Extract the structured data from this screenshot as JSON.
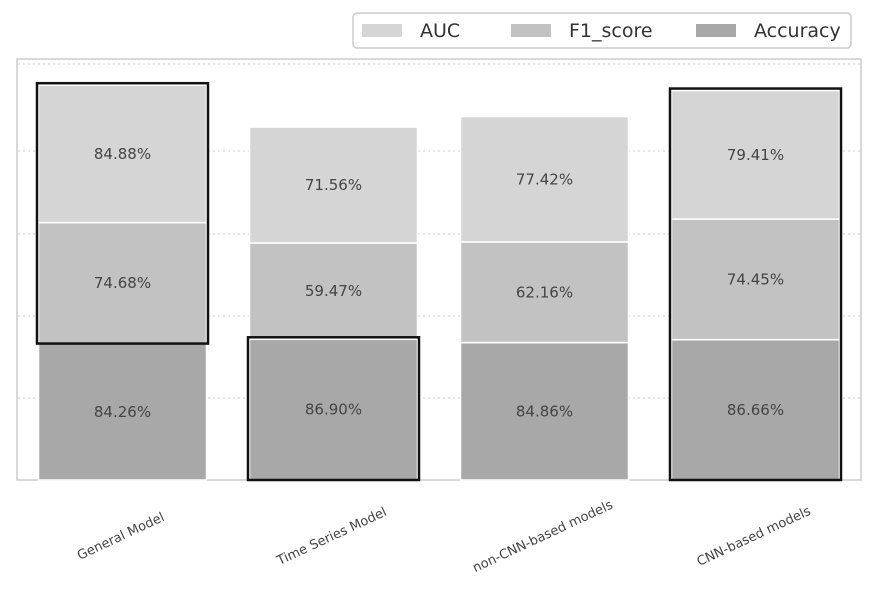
{
  "chart_data": {
    "type": "bar",
    "stacked": true,
    "title": "",
    "xlabel": "",
    "ylabel": "",
    "grid": true,
    "legend_position": "top-right",
    "categories": [
      "General Model",
      "Time Series Model",
      "non-CNN-based models",
      "CNN-based models"
    ],
    "series": [
      {
        "name": "Accuracy",
        "values": [
          84.26,
          86.9,
          84.86,
          86.66
        ],
        "labels": [
          "84.26%",
          "86.90%",
          "84.86%",
          "86.66%"
        ],
        "color": "#a8a8a8"
      },
      {
        "name": "F1_score",
        "values": [
          74.68,
          59.47,
          62.16,
          74.45
        ],
        "labels": [
          "74.68%",
          "59.47%",
          "62.16%",
          "74.45%"
        ],
        "color": "#c2c2c2"
      },
      {
        "name": "AUC",
        "values": [
          84.88,
          71.56,
          77.42,
          79.41
        ],
        "labels": [
          "84.88%",
          "71.56%",
          "77.42%",
          "79.41%"
        ],
        "color": "#d5d5d5"
      }
    ],
    "legend_order": [
      "AUC",
      "F1_score",
      "Accuracy"
    ],
    "ylim": [
      0,
      260
    ],
    "highlighted_boxes": [
      {
        "category": "General Model",
        "series": [
          "F1_score",
          "AUC"
        ]
      },
      {
        "category": "Time Series Model",
        "series": [
          "Accuracy"
        ]
      },
      {
        "category": "CNN-based models",
        "series": [
          "Accuracy",
          "F1_score",
          "AUC"
        ]
      }
    ]
  }
}
